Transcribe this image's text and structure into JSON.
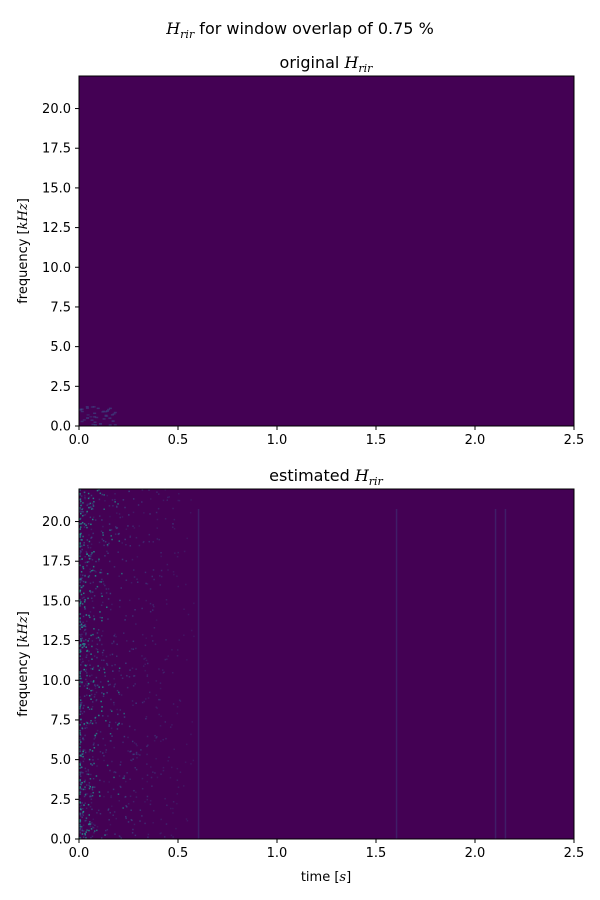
{
  "figure": {
    "suptitle_main": "H",
    "suptitle_sub": "rir",
    "suptitle_rest": " for window overlap of 0.75 %"
  },
  "colormap": {
    "name": "viridis",
    "low": "#440154",
    "mid": "#3b528b",
    "high": "#21908d"
  },
  "chart_data": [
    {
      "type": "heatmap",
      "title_prefix": "original ",
      "title_var": "H",
      "title_sub": "rir",
      "xlabel": "",
      "ylabel_prefix": "frequency [",
      "ylabel_unit": "kHz",
      "ylabel_suffix": "]",
      "xlim": [
        0,
        2.5
      ],
      "ylim": [
        0,
        22.05
      ],
      "xticks": [
        "0.0",
        "0.5",
        "1.0",
        "1.5",
        "2.0",
        "2.5"
      ],
      "yticks": [
        "0.0",
        "2.5",
        "5.0",
        "7.5",
        "10.0",
        "12.5",
        "15.0",
        "17.5",
        "20.0"
      ],
      "energy": "concentrated near t=0 and low frequencies, otherwise near zero"
    },
    {
      "type": "heatmap",
      "title_prefix": "estimated ",
      "title_var": "H",
      "title_sub": "rir",
      "xlabel_prefix": "time [",
      "xlabel_unit": "s",
      "xlabel_suffix": "]",
      "ylabel_prefix": "frequency [",
      "ylabel_unit": "kHz",
      "ylabel_suffix": "]",
      "xlim": [
        0,
        2.5
      ],
      "ylim": [
        0,
        22.05
      ],
      "xticks": [
        "0.0",
        "0.5",
        "1.0",
        "1.5",
        "2.0",
        "2.5"
      ],
      "yticks": [
        "0.0",
        "2.5",
        "5.0",
        "7.5",
        "10.0",
        "12.5",
        "15.0",
        "17.5",
        "20.0"
      ],
      "energy": "broadband noise strongest for t<0.5 s, vertical streaks near 0.6 s, 1.6 s and 2.1 s"
    }
  ]
}
